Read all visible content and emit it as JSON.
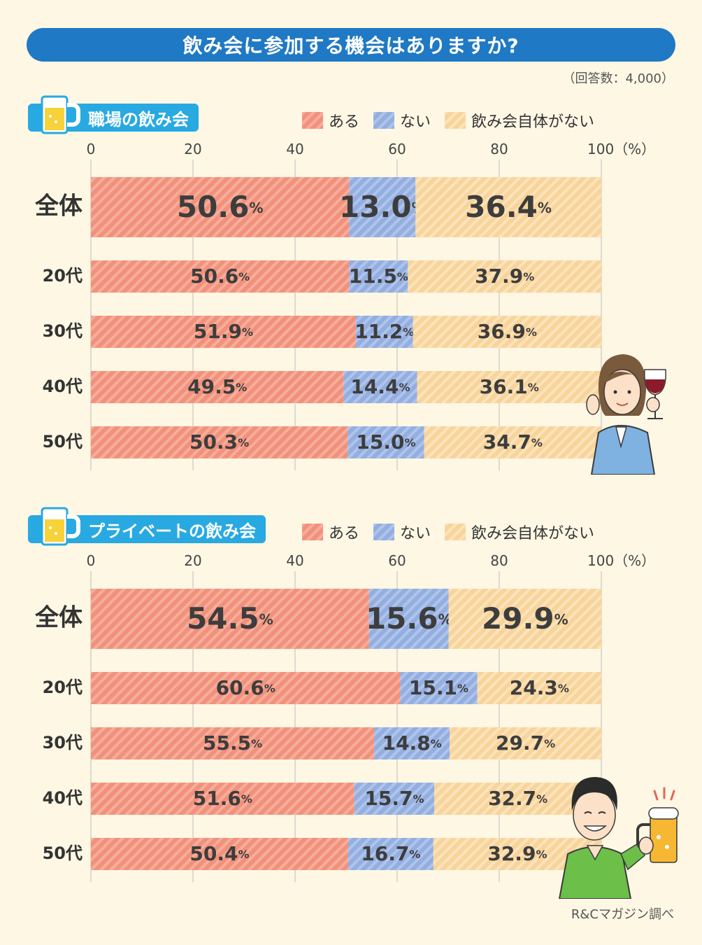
{
  "title": "飲み会に参加する機会はありますか?",
  "respondents": "（回答数：4,000）",
  "source": "R&Cマガジン調べ",
  "legend": [
    "ある",
    "ない",
    "飲み会自体がない"
  ],
  "colors": {
    "aru": "#f2917b",
    "nai": "#93aee0",
    "nashi": "#f8d49b",
    "title_bg": "#1f79c4",
    "tag_bg": "#28a9e1",
    "background": "#fdf7e4"
  },
  "chart_data": [
    {
      "type": "bar",
      "orientation": "horizontal",
      "stacked": true,
      "title": "職場の飲み会",
      "categories": [
        "全体",
        "20代",
        "30代",
        "40代",
        "50代"
      ],
      "series": [
        {
          "name": "ある",
          "values": [
            50.6,
            50.6,
            51.9,
            49.5,
            50.3
          ]
        },
        {
          "name": "ない",
          "values": [
            13.0,
            11.5,
            11.2,
            14.4,
            15.0
          ]
        },
        {
          "name": "飲み会自体がない",
          "values": [
            36.4,
            37.9,
            36.9,
            36.1,
            34.7
          ]
        }
      ],
      "xlim": [
        0,
        100
      ],
      "xticks": [
        "0",
        "20",
        "40",
        "60",
        "80",
        "100（%）"
      ],
      "value_suffix": "%",
      "grid": true
    },
    {
      "type": "bar",
      "orientation": "horizontal",
      "stacked": true,
      "title": "プライベートの飲み会",
      "categories": [
        "全体",
        "20代",
        "30代",
        "40代",
        "50代"
      ],
      "series": [
        {
          "name": "ある",
          "values": [
            54.5,
            60.6,
            55.5,
            51.6,
            50.4
          ]
        },
        {
          "name": "ない",
          "values": [
            15.6,
            15.1,
            14.8,
            15.7,
            16.7
          ]
        },
        {
          "name": "飲み会自体がない",
          "values": [
            29.9,
            24.3,
            29.7,
            32.7,
            32.9
          ]
        }
      ],
      "xlim": [
        0,
        100
      ],
      "xticks": [
        "0",
        "20",
        "40",
        "60",
        "80",
        "100（%）"
      ],
      "value_suffix": "%",
      "grid": true
    }
  ]
}
